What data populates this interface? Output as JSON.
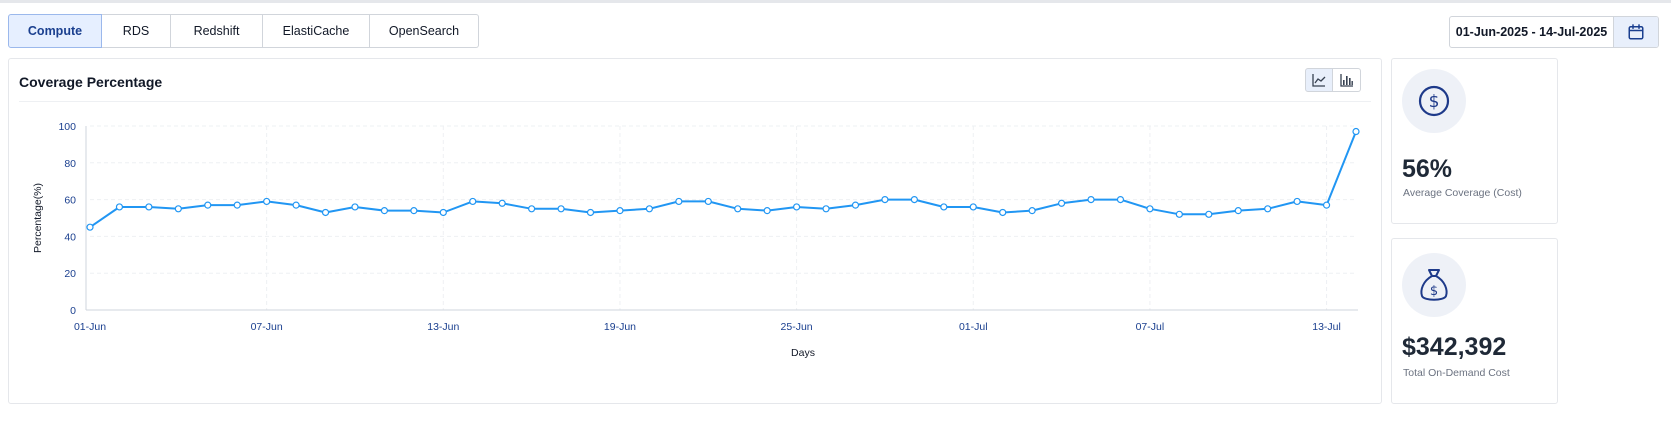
{
  "tabs": [
    {
      "label": "Compute",
      "active": true
    },
    {
      "label": "RDS",
      "active": false
    },
    {
      "label": "Redshift",
      "active": false
    },
    {
      "label": "ElastiCache",
      "active": false
    },
    {
      "label": "OpenSearch",
      "active": false
    }
  ],
  "date_range": {
    "value": "01-Jun-2025 - 14-Jul-2025",
    "icon": "calendar-icon"
  },
  "chart_card": {
    "title": "Coverage Percentage",
    "view_buttons": [
      {
        "icon": "line-chart-icon",
        "active": true
      },
      {
        "icon": "bar-chart-icon",
        "active": false
      }
    ]
  },
  "stats": [
    {
      "value": "56%",
      "label": "Average Coverage (Cost)",
      "icon": "dollar-circle-icon"
    },
    {
      "value": "$342,392",
      "label": "Total On-Demand Cost",
      "icon": "money-bag-icon"
    }
  ],
  "colors": {
    "accent": "#2196f3",
    "tick_label": "#1a3f8f",
    "active_tab_bg": "#e6efff"
  },
  "chart_data": {
    "type": "line",
    "xlabel": "Days",
    "ylabel": "Percentage(%)",
    "ylim": [
      0,
      100
    ],
    "yticks": [
      0,
      20,
      40,
      60,
      80,
      100
    ],
    "xtick_labels": [
      "01-Jun",
      "07-Jun",
      "13-Jun",
      "19-Jun",
      "25-Jun",
      "01-Jul",
      "07-Jul",
      "13-Jul"
    ],
    "x": [
      "01-Jun",
      "02-Jun",
      "03-Jun",
      "04-Jun",
      "05-Jun",
      "06-Jun",
      "07-Jun",
      "08-Jun",
      "09-Jun",
      "10-Jun",
      "11-Jun",
      "12-Jun",
      "13-Jun",
      "14-Jun",
      "15-Jun",
      "16-Jun",
      "17-Jun",
      "18-Jun",
      "19-Jun",
      "20-Jun",
      "21-Jun",
      "22-Jun",
      "23-Jun",
      "24-Jun",
      "25-Jun",
      "26-Jun",
      "27-Jun",
      "28-Jun",
      "29-Jun",
      "30-Jun",
      "01-Jul",
      "02-Jul",
      "03-Jul",
      "04-Jul",
      "05-Jul",
      "06-Jul",
      "07-Jul",
      "08-Jul",
      "09-Jul",
      "10-Jul",
      "11-Jul",
      "12-Jul",
      "13-Jul",
      "14-Jul"
    ],
    "series": [
      {
        "values": [
          45,
          56,
          56,
          55,
          57,
          57,
          59,
          57,
          53,
          56,
          54,
          54,
          53,
          59,
          58,
          55,
          55,
          53,
          54,
          55,
          59,
          59,
          55,
          54,
          56,
          55,
          57,
          60,
          60,
          56,
          56,
          53,
          54,
          58,
          60,
          60,
          55,
          52,
          52,
          54,
          55,
          59,
          57,
          97
        ]
      }
    ],
    "grid": true,
    "legend": "none"
  }
}
